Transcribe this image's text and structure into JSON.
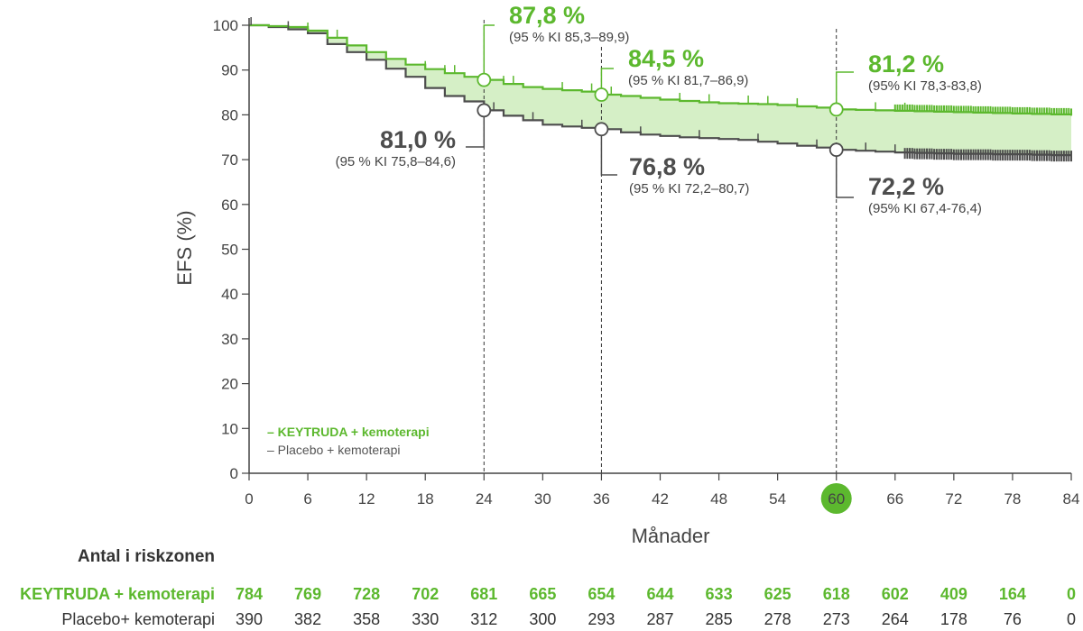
{
  "chart_data": {
    "type": "line",
    "xlabel": "Månader",
    "ylabel": "EFS (%)",
    "xlim": [
      0,
      84
    ],
    "ylim": [
      0,
      100
    ],
    "x_ticks": [
      0,
      6,
      12,
      18,
      24,
      30,
      36,
      42,
      48,
      54,
      60,
      66,
      72,
      78,
      84
    ],
    "y_ticks": [
      0,
      10,
      20,
      30,
      40,
      50,
      60,
      70,
      80,
      90,
      100
    ],
    "highlighted_x_tick": 60,
    "grid": false,
    "shaded_region_between_series": true,
    "legend": {
      "position": "bottom-left",
      "entries": [
        "– KEYTRUDA + kemoterapi",
        "– Placebo + kemoterapi"
      ]
    },
    "series": [
      {
        "name": "KEYTRUDA + kemoterapi",
        "color": "#5cb82e",
        "x": [
          0,
          2,
          4,
          6,
          8,
          10,
          12,
          14,
          16,
          18,
          20,
          22,
          24,
          26,
          28,
          30,
          32,
          34,
          36,
          38,
          40,
          42,
          44,
          46,
          48,
          50,
          52,
          54,
          56,
          58,
          60,
          62,
          64,
          66,
          68,
          70,
          72,
          74,
          76,
          78,
          80,
          82,
          84
        ],
        "y": [
          100,
          99.8,
          99.6,
          98.8,
          97.2,
          95.5,
          94,
          92.5,
          91.2,
          90.2,
          89.3,
          88.5,
          87.8,
          86.9,
          86.2,
          85.8,
          85.5,
          85.2,
          84.5,
          84.2,
          83.8,
          83.4,
          83.1,
          82.8,
          82.6,
          82.5,
          82.4,
          82.2,
          81.9,
          81.6,
          81.2,
          81.1,
          81.0,
          80.9,
          80.8,
          80.7,
          80.6,
          80.5,
          80.4,
          80.3,
          80.2,
          80.1,
          80.0
        ]
      },
      {
        "name": "Placebo + kemoterapi",
        "color": "#4d4d4d",
        "x": [
          0,
          2,
          4,
          6,
          8,
          10,
          12,
          14,
          16,
          18,
          20,
          22,
          24,
          26,
          28,
          30,
          32,
          34,
          36,
          38,
          40,
          42,
          44,
          46,
          48,
          50,
          52,
          54,
          56,
          58,
          60,
          62,
          64,
          66,
          68,
          70,
          72,
          74,
          76,
          78,
          80,
          82,
          84
        ],
        "y": [
          100,
          99.6,
          99.1,
          98.2,
          95.8,
          94.0,
          92.3,
          90.3,
          88.5,
          86.0,
          84.2,
          83.0,
          81.0,
          79.8,
          78.8,
          77.8,
          77.4,
          77.1,
          76.8,
          76.1,
          75.6,
          75.3,
          75.0,
          74.8,
          74.6,
          74.4,
          74.0,
          73.6,
          73.1,
          72.7,
          72.2,
          72.0,
          71.8,
          71.6,
          71.5,
          71.4,
          71.3,
          71.3,
          71.2,
          71.2,
          71.1,
          71.0,
          71.0
        ]
      }
    ],
    "annotations": [
      {
        "x": 24,
        "series": "KEYTRUDA + kemoterapi",
        "value": 87.8,
        "label": "87,8 %",
        "ci": "(95 % KI 85,3–89,9)"
      },
      {
        "x": 24,
        "series": "Placebo + kemoterapi",
        "value": 81.0,
        "label": "81,0 %",
        "ci": "(95 % KI 75,8–84,6)"
      },
      {
        "x": 36,
        "series": "KEYTRUDA + kemoterapi",
        "value": 84.5,
        "label": "84,5 %",
        "ci": "(95 % KI 81,7–86,9)"
      },
      {
        "x": 36,
        "series": "Placebo + kemoterapi",
        "value": 76.8,
        "label": "76,8 %",
        "ci": "(95 % KI 72,2–80,7)"
      },
      {
        "x": 60,
        "series": "KEYTRUDA + kemoterapi",
        "value": 81.2,
        "label": "81,2 %",
        "ci": "(95% KI 78,3-83,8)"
      },
      {
        "x": 60,
        "series": "Placebo + kemoterapi",
        "value": 72.2,
        "label": "72,2 %",
        "ci": "(95% KI 67,4-76,4)"
      }
    ]
  },
  "risk_table": {
    "title": "Antal i riskzonen",
    "rows": [
      {
        "label": "KEYTRUDA + kemoterapi",
        "values": [
          784,
          769,
          728,
          702,
          681,
          665,
          654,
          644,
          633,
          625,
          618,
          602,
          409,
          164,
          0
        ]
      },
      {
        "label": "Placebo+ kemoterapi",
        "values": [
          390,
          382,
          358,
          330,
          312,
          300,
          293,
          287,
          285,
          278,
          273,
          264,
          178,
          76,
          0
        ]
      }
    ]
  },
  "colors": {
    "green": "#5cb82e",
    "light_green_fill": "#d5efc6",
    "dark_gray": "#4d4d4d",
    "axis": "#444444"
  }
}
